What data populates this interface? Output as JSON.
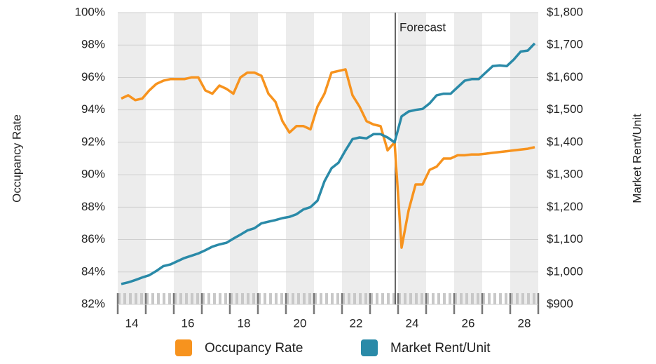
{
  "chart_data": {
    "type": "line",
    "annotations": [
      {
        "text": "Forecast",
        "x": 23.9
      }
    ],
    "y_label": "Occupancy Rate",
    "y2_label": "Market Rent/Unit",
    "xlim": [
      14,
      29
    ],
    "xticks": [
      {
        "value": 14.5,
        "label": "14"
      },
      {
        "value": 16.5,
        "label": "16"
      },
      {
        "value": 18.5,
        "label": "18"
      },
      {
        "value": 20.5,
        "label": "20"
      },
      {
        "value": 22.5,
        "label": "22"
      },
      {
        "value": 24.5,
        "label": "24"
      },
      {
        "value": 26.5,
        "label": "26"
      },
      {
        "value": 28.5,
        "label": "28"
      }
    ],
    "ylim": [
      82,
      100
    ],
    "yticks": [
      {
        "value": 82,
        "label": "82%"
      },
      {
        "value": 84,
        "label": "84%"
      },
      {
        "value": 86,
        "label": "86%"
      },
      {
        "value": 88,
        "label": "88%"
      },
      {
        "value": 90,
        "label": "90%"
      },
      {
        "value": 92,
        "label": "92%"
      },
      {
        "value": 94,
        "label": "94%"
      },
      {
        "value": 96,
        "label": "96%"
      },
      {
        "value": 98,
        "label": "98%"
      },
      {
        "value": 100,
        "label": "100%"
      }
    ],
    "y2lim": [
      900,
      1800
    ],
    "y2ticks": [
      {
        "value": 900,
        "label": "$900"
      },
      {
        "value": 1000,
        "label": "$1,000"
      },
      {
        "value": 1100,
        "label": "$1,100"
      },
      {
        "value": 1200,
        "label": "$1,200"
      },
      {
        "value": 1300,
        "label": "$1,300"
      },
      {
        "value": 1400,
        "label": "$1,400"
      },
      {
        "value": 1500,
        "label": "$1,500"
      },
      {
        "value": 1600,
        "label": "$1,600"
      },
      {
        "value": 1700,
        "label": "$1,700"
      },
      {
        "value": 1800,
        "label": "$1,800"
      }
    ],
    "grid": true,
    "legend": "bottom",
    "x": [
      14.125,
      14.375,
      14.625,
      14.875,
      15.125,
      15.375,
      15.625,
      15.875,
      16.125,
      16.375,
      16.625,
      16.875,
      17.125,
      17.375,
      17.625,
      17.875,
      18.125,
      18.375,
      18.625,
      18.875,
      19.125,
      19.375,
      19.625,
      19.875,
      20.125,
      20.375,
      20.625,
      20.875,
      21.125,
      21.375,
      21.625,
      21.875,
      22.125,
      22.375,
      22.625,
      22.875,
      23.125,
      23.375,
      23.625,
      23.875,
      24.125,
      24.375,
      24.625,
      24.875,
      25.125,
      25.375,
      25.625,
      25.875,
      26.125,
      26.375,
      26.625,
      26.875,
      27.125,
      27.375,
      27.625,
      27.875,
      28.125,
      28.375,
      28.625,
      28.875
    ],
    "series": [
      {
        "name": "Occupancy Rate",
        "color": "#f7931e",
        "values": [
          94.7,
          94.9,
          94.6,
          94.7,
          95.2,
          95.6,
          95.8,
          95.9,
          95.9,
          95.9,
          96.0,
          96.0,
          95.2,
          95.0,
          95.5,
          95.3,
          95.0,
          96.0,
          96.3,
          96.3,
          96.1,
          95.0,
          94.5,
          93.3,
          92.6,
          93.0,
          93.0,
          92.8,
          94.2,
          95.0,
          96.3,
          96.4,
          96.5,
          94.9,
          94.2,
          93.3,
          93.1,
          93.0,
          91.5,
          92.0,
          85.5,
          87.8,
          89.4,
          89.4,
          90.3,
          90.5,
          91.0,
          91.0,
          91.2,
          91.2,
          91.25,
          91.25,
          91.3,
          91.35,
          91.4,
          91.45,
          91.5,
          91.55,
          91.6,
          91.7
        ]
      },
      {
        "name": "Market Rent/Unit",
        "color": "#2a8aa8",
        "axis": "y2",
        "values": [
          963,
          968,
          975,
          983,
          990,
          1003,
          1018,
          1023,
          1033,
          1043,
          1050,
          1057,
          1067,
          1078,
          1085,
          1090,
          1103,
          1115,
          1128,
          1135,
          1150,
          1155,
          1160,
          1166,
          1170,
          1178,
          1193,
          1200,
          1220,
          1280,
          1320,
          1337,
          1375,
          1410,
          1415,
          1412,
          1425,
          1425,
          1415,
          1400,
          1480,
          1495,
          1500,
          1503,
          1520,
          1545,
          1550,
          1550,
          1570,
          1590,
          1595,
          1595,
          1615,
          1635,
          1637,
          1635,
          1655,
          1680,
          1683,
          1705
        ]
      }
    ]
  }
}
